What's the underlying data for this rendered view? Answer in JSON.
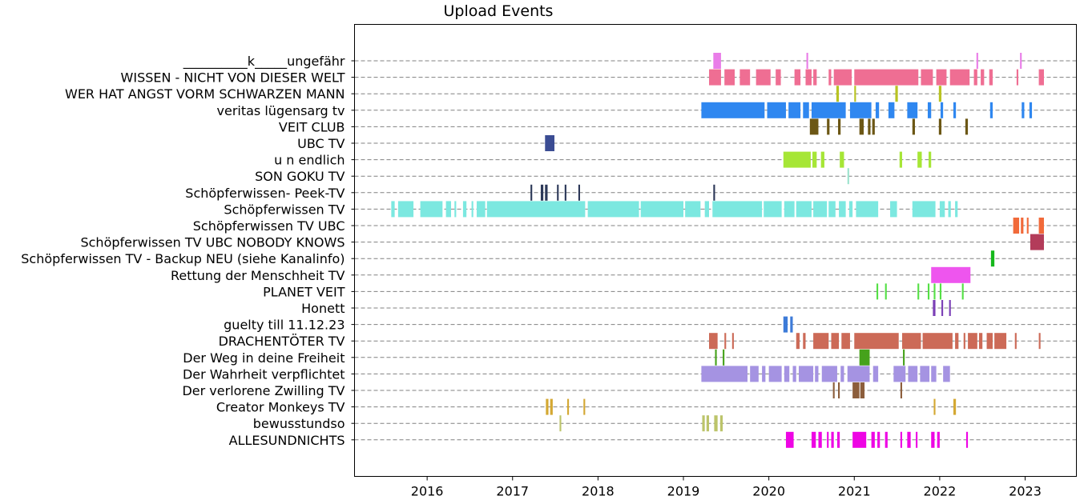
{
  "chart_data": {
    "type": "timeline",
    "title": "Upload Events",
    "xlabel": "",
    "ylabel": "",
    "xlim": [
      2015.15,
      2023.6
    ],
    "x_ticks": [
      {
        "value": 2016,
        "label": "2016"
      },
      {
        "value": 2017,
        "label": "2017"
      },
      {
        "value": 2018,
        "label": "2018"
      },
      {
        "value": 2019,
        "label": "2019"
      },
      {
        "value": 2020,
        "label": "2020"
      },
      {
        "value": 2021,
        "label": "2021"
      },
      {
        "value": 2022,
        "label": "2022"
      },
      {
        "value": 2023,
        "label": "2023"
      }
    ],
    "grid": "horizontal-dashed",
    "series": [
      {
        "name": "__________k_____ungefähr",
        "color": "#e97de8",
        "events": [
          [
            2019.35,
            2019.44
          ],
          [
            2020.44,
            2020.46
          ],
          [
            2022.43,
            2022.45
          ],
          [
            2022.94,
            2022.96
          ]
        ]
      },
      {
        "name": "WISSEN - NICHT VON DIESER WELT",
        "color": "#ef6e93",
        "events": [
          [
            2019.3,
            2019.44
          ],
          [
            2019.48,
            2019.6
          ],
          [
            2019.66,
            2019.78
          ],
          [
            2019.85,
            2020.02
          ],
          [
            2020.08,
            2020.14
          ],
          [
            2020.3,
            2020.37
          ],
          [
            2020.43,
            2020.5
          ],
          [
            2020.52,
            2020.56
          ],
          [
            2020.7,
            2020.73
          ],
          [
            2020.76,
            2020.97
          ],
          [
            2021.0,
            2021.75
          ],
          [
            2021.78,
            2021.92
          ],
          [
            2021.96,
            2022.08
          ],
          [
            2022.12,
            2022.35
          ],
          [
            2022.4,
            2022.44
          ],
          [
            2022.48,
            2022.52
          ],
          [
            2022.58,
            2022.62
          ],
          [
            2022.9,
            2022.92
          ],
          [
            2023.16,
            2023.22
          ]
        ]
      },
      {
        "name": "WER HAT ANGST VORM SCHWARZEN MANN",
        "color": "#b9c322",
        "events": [
          [
            2020.79,
            2020.82
          ],
          [
            2021.0,
            2021.02
          ],
          [
            2021.48,
            2021.51
          ],
          [
            2021.99,
            2022.02
          ]
        ]
      },
      {
        "name": "veritas lügensarg tv",
        "color": "#2f87f0",
        "events": [
          [
            2019.21,
            2019.95
          ],
          [
            2019.98,
            2020.2
          ],
          [
            2020.23,
            2020.37
          ],
          [
            2020.4,
            2020.47
          ],
          [
            2020.5,
            2020.9
          ],
          [
            2020.95,
            2021.2
          ],
          [
            2021.25,
            2021.29
          ],
          [
            2021.4,
            2021.47
          ],
          [
            2021.62,
            2021.74
          ],
          [
            2021.86,
            2021.9
          ],
          [
            2022.01,
            2022.04
          ],
          [
            2022.16,
            2022.19
          ],
          [
            2022.59,
            2022.62
          ],
          [
            2022.96,
            2022.99
          ],
          [
            2023.05,
            2023.08
          ]
        ]
      },
      {
        "name": "VEIT CLUB",
        "color": "#6c5715",
        "events": [
          [
            2020.48,
            2020.58
          ],
          [
            2020.68,
            2020.71
          ],
          [
            2020.81,
            2020.84
          ],
          [
            2021.06,
            2021.11
          ],
          [
            2021.16,
            2021.19
          ],
          [
            2021.21,
            2021.24
          ],
          [
            2021.68,
            2021.71
          ],
          [
            2021.99,
            2022.02
          ],
          [
            2022.3,
            2022.33
          ]
        ]
      },
      {
        "name": "UBC TV",
        "color": "#3b4c93",
        "events": [
          [
            2017.38,
            2017.49
          ]
        ]
      },
      {
        "name": "u n endlich",
        "color": "#a6e636",
        "events": [
          [
            2020.17,
            2020.49
          ],
          [
            2020.51,
            2020.56
          ],
          [
            2020.61,
            2020.65
          ],
          [
            2020.83,
            2020.88
          ],
          [
            2021.53,
            2021.56
          ],
          [
            2021.74,
            2021.79
          ],
          [
            2021.87,
            2021.9
          ]
        ]
      },
      {
        "name": "SON GOKU TV",
        "color": "#9ce3cd",
        "events": [
          [
            2020.92,
            2020.94
          ]
        ]
      },
      {
        "name": "Schöpferwissen- Peek-TV",
        "color": "#2c3858",
        "events": [
          [
            2017.21,
            2017.23
          ],
          [
            2017.33,
            2017.36
          ],
          [
            2017.38,
            2017.41
          ],
          [
            2017.52,
            2017.54
          ],
          [
            2017.61,
            2017.63
          ],
          [
            2017.77,
            2017.79
          ],
          [
            2019.35,
            2019.37
          ]
        ]
      },
      {
        "name": "Schöpferwissen TV",
        "color": "#7ce8e0",
        "events": [
          [
            2015.58,
            2015.62
          ],
          [
            2015.66,
            2015.84
          ],
          [
            2015.92,
            2016.18
          ],
          [
            2016.22,
            2016.28
          ],
          [
            2016.32,
            2016.34
          ],
          [
            2016.42,
            2016.46
          ],
          [
            2016.52,
            2016.54
          ],
          [
            2016.58,
            2016.68
          ],
          [
            2016.7,
            2017.85
          ],
          [
            2017.88,
            2018.48
          ],
          [
            2018.5,
            2019.0
          ],
          [
            2019.02,
            2019.2
          ],
          [
            2019.25,
            2019.3
          ],
          [
            2019.34,
            2019.92
          ],
          [
            2019.94,
            2020.15
          ],
          [
            2020.18,
            2020.3
          ],
          [
            2020.32,
            2020.5
          ],
          [
            2020.52,
            2020.68
          ],
          [
            2020.7,
            2020.78
          ],
          [
            2020.82,
            2020.9
          ],
          [
            2020.94,
            2020.98
          ],
          [
            2021.02,
            2021.28
          ],
          [
            2021.42,
            2021.5
          ],
          [
            2021.68,
            2021.95
          ],
          [
            2022.0,
            2022.06
          ],
          [
            2022.1,
            2022.13
          ],
          [
            2022.18,
            2022.21
          ]
        ]
      },
      {
        "name": "Schöpferwissen TV UBC",
        "color": "#f16a3a",
        "events": [
          [
            2022.86,
            2022.93
          ],
          [
            2022.95,
            2022.98
          ],
          [
            2023.02,
            2023.04
          ],
          [
            2023.16,
            2023.22
          ]
        ]
      },
      {
        "name": "Schöpferwissen TV UBC NOBODY KNOWS",
        "color": "#b33c5a",
        "events": [
          [
            2023.06,
            2023.22
          ]
        ]
      },
      {
        "name": "Schöpferwissen TV - Backup NEU (siehe Kanalinfo)",
        "color": "#16b81c",
        "events": [
          [
            2022.6,
            2022.64
          ]
        ]
      },
      {
        "name": "Rettung der Menschheit TV",
        "color": "#ee55ee",
        "events": [
          [
            2021.9,
            2022.36
          ]
        ]
      },
      {
        "name": "PLANET VEIT",
        "color": "#55e046",
        "events": [
          [
            2021.26,
            2021.28
          ],
          [
            2021.36,
            2021.38
          ],
          [
            2021.74,
            2021.76
          ],
          [
            2021.86,
            2021.88
          ],
          [
            2021.93,
            2021.95
          ],
          [
            2022.0,
            2022.02
          ],
          [
            2022.26,
            2022.28
          ]
        ]
      },
      {
        "name": "Honett",
        "color": "#7b3fb6",
        "events": [
          [
            2021.92,
            2021.95
          ],
          [
            2022.02,
            2022.04
          ],
          [
            2022.11,
            2022.13
          ]
        ]
      },
      {
        "name": "guelty till 11.12.23",
        "color": "#3d7bd8",
        "events": [
          [
            2020.17,
            2020.22
          ],
          [
            2020.25,
            2020.28
          ]
        ]
      },
      {
        "name": "DRACHENTÖTER TV",
        "color": "#cc6a57",
        "events": [
          [
            2019.3,
            2019.4
          ],
          [
            2019.48,
            2019.5
          ],
          [
            2019.57,
            2019.59
          ],
          [
            2020.32,
            2020.36
          ],
          [
            2020.4,
            2020.43
          ],
          [
            2020.52,
            2020.7
          ],
          [
            2020.73,
            2020.82
          ],
          [
            2020.85,
            2020.95
          ],
          [
            2021.0,
            2021.52
          ],
          [
            2021.56,
            2021.78
          ],
          [
            2021.8,
            2022.15
          ],
          [
            2022.18,
            2022.22
          ],
          [
            2022.28,
            2022.3
          ],
          [
            2022.33,
            2022.44
          ],
          [
            2022.46,
            2022.5
          ],
          [
            2022.55,
            2022.62
          ],
          [
            2022.64,
            2022.78
          ],
          [
            2022.88,
            2022.9
          ],
          [
            2023.16,
            2023.18
          ]
        ]
      },
      {
        "name": "Der Weg in deine Freiheit",
        "color": "#46a21b",
        "events": [
          [
            2019.37,
            2019.39
          ],
          [
            2019.46,
            2019.48
          ],
          [
            2021.06,
            2021.18
          ],
          [
            2021.57,
            2021.59
          ]
        ]
      },
      {
        "name": "Der Wahrheit verpflichtet",
        "color": "#a593e2",
        "events": [
          [
            2019.21,
            2019.75
          ],
          [
            2019.78,
            2019.88
          ],
          [
            2019.92,
            2019.96
          ],
          [
            2020.0,
            2020.15
          ],
          [
            2020.18,
            2020.24
          ],
          [
            2020.28,
            2020.32
          ],
          [
            2020.35,
            2020.52
          ],
          [
            2020.54,
            2020.58
          ],
          [
            2020.62,
            2020.8
          ],
          [
            2020.84,
            2020.88
          ],
          [
            2020.92,
            2021.18
          ],
          [
            2021.22,
            2021.28
          ],
          [
            2021.46,
            2021.6
          ],
          [
            2021.63,
            2021.74
          ],
          [
            2021.77,
            2021.88
          ],
          [
            2021.9,
            2021.96
          ],
          [
            2022.04,
            2022.12
          ]
        ]
      },
      {
        "name": "Der verlorene Zwilling TV",
        "color": "#8c5e3c",
        "events": [
          [
            2020.75,
            2020.77
          ],
          [
            2020.81,
            2020.83
          ],
          [
            2020.98,
            2021.06
          ],
          [
            2021.07,
            2021.12
          ],
          [
            2021.54,
            2021.56
          ]
        ]
      },
      {
        "name": "Creator Monkeys TV",
        "color": "#d4a833",
        "events": [
          [
            2017.39,
            2017.42
          ],
          [
            2017.44,
            2017.47
          ],
          [
            2017.64,
            2017.66
          ],
          [
            2017.83,
            2017.85
          ],
          [
            2021.93,
            2021.95
          ],
          [
            2022.16,
            2022.19
          ]
        ]
      },
      {
        "name": "bewusstundso",
        "color": "#bcc46a",
        "events": [
          [
            2017.55,
            2017.57
          ],
          [
            2019.22,
            2019.25
          ],
          [
            2019.27,
            2019.3
          ],
          [
            2019.36,
            2019.4
          ],
          [
            2019.43,
            2019.46
          ]
        ]
      },
      {
        "name": "ALLESUNDNICHTS",
        "color": "#ee05e4",
        "events": [
          [
            2020.2,
            2020.29
          ],
          [
            2020.5,
            2020.55
          ],
          [
            2020.58,
            2020.62
          ],
          [
            2020.68,
            2020.7
          ],
          [
            2020.73,
            2020.76
          ],
          [
            2020.8,
            2020.83
          ],
          [
            2020.98,
            2021.14
          ],
          [
            2021.2,
            2021.24
          ],
          [
            2021.27,
            2021.3
          ],
          [
            2021.36,
            2021.39
          ],
          [
            2021.54,
            2021.56
          ],
          [
            2021.62,
            2021.66
          ],
          [
            2021.72,
            2021.74
          ],
          [
            2021.9,
            2021.94
          ],
          [
            2021.97,
            2022.0
          ],
          [
            2022.31,
            2022.33
          ]
        ]
      }
    ]
  }
}
